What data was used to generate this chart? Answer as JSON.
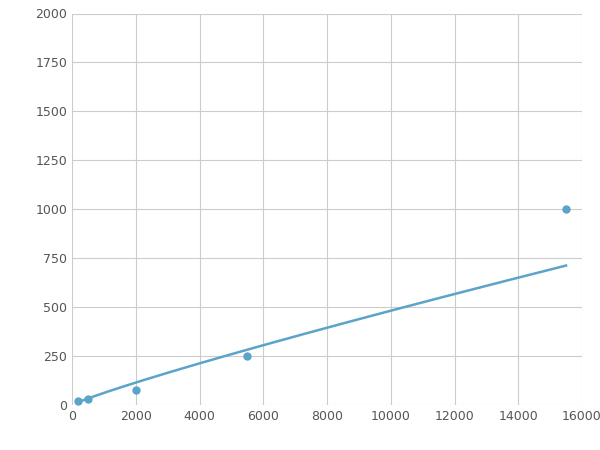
{
  "x": [
    200,
    500,
    2000,
    5500,
    15500
  ],
  "y": [
    20,
    30,
    75,
    250,
    1000
  ],
  "line_color": "#5ba3c9",
  "marker_color": "#5ba3c9",
  "marker_size": 5,
  "line_width": 1.8,
  "xlim": [
    0,
    16000
  ],
  "ylim": [
    0,
    2000
  ],
  "xticks": [
    0,
    2000,
    4000,
    6000,
    8000,
    10000,
    12000,
    14000,
    16000
  ],
  "yticks": [
    0,
    250,
    500,
    750,
    1000,
    1250,
    1500,
    1750,
    2000
  ],
  "grid": true,
  "background_color": "#ffffff",
  "figsize": [
    6.0,
    4.5
  ],
  "dpi": 100
}
